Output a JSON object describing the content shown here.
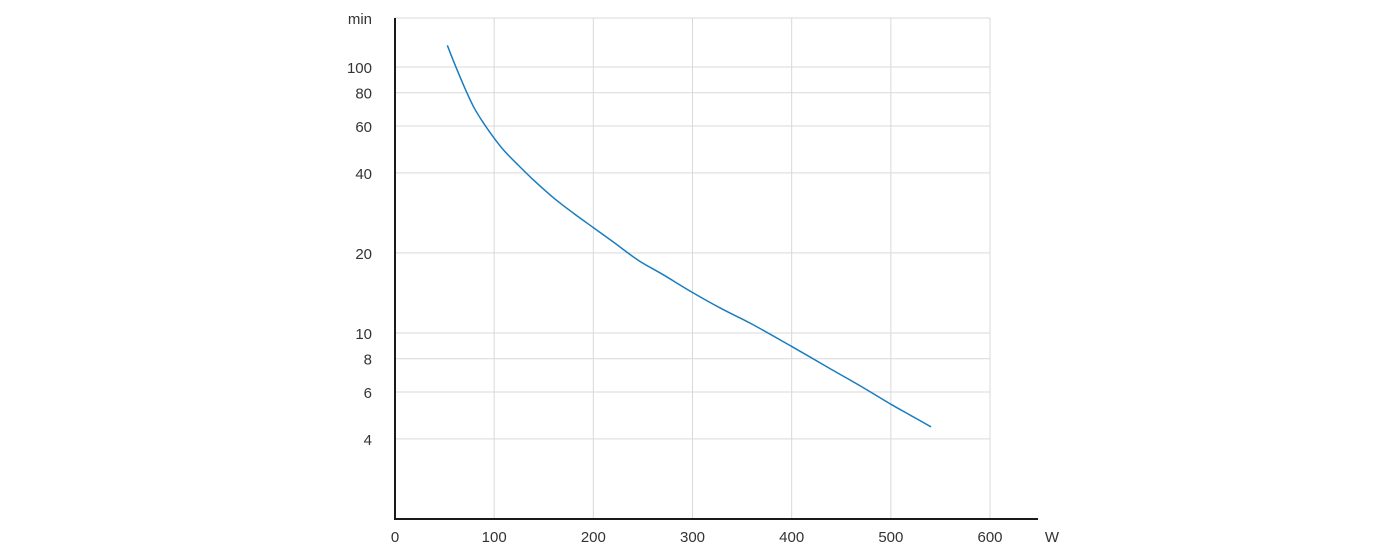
{
  "chart_data": {
    "type": "line",
    "title": "",
    "xlabel": "W",
    "ylabel": "min",
    "x_scale": "linear",
    "y_scale": "log",
    "xlim": [
      0,
      600
    ],
    "ylim": [
      2,
      150
    ],
    "x_ticks": [
      0,
      100,
      200,
      300,
      400,
      500,
      600
    ],
    "y_ticks": [
      4,
      6,
      8,
      10,
      20,
      40,
      60,
      80,
      100
    ],
    "grid": true,
    "legend": "none",
    "colors": {
      "series": "#1a7dbf",
      "grid": "#d9d9d9",
      "axis": "#1a1a1a",
      "text": "#333333"
    },
    "series": [
      {
        "x": [
          53,
          60,
          70,
          80,
          90,
          100,
          110,
          125,
          140,
          160,
          180,
          200,
          220,
          245,
          270,
          300,
          330,
          360,
          400,
          440,
          470,
          500,
          520,
          540
        ],
        "values": [
          120,
          103,
          84,
          70,
          61,
          54,
          48.5,
          42.5,
          37.5,
          32.2,
          28.2,
          24.9,
          22,
          18.8,
          16.6,
          14.2,
          12.3,
          10.8,
          8.9,
          7.3,
          6.3,
          5.4,
          4.9,
          4.45
        ]
      }
    ]
  }
}
